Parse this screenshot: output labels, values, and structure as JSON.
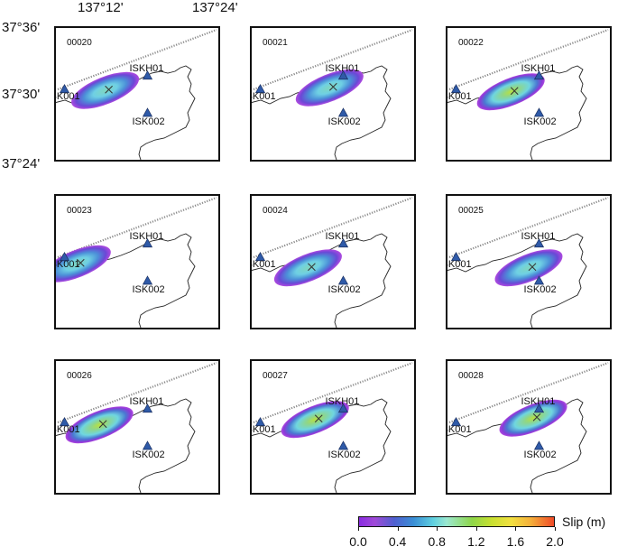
{
  "axes": {
    "x_ticks": [
      "137°12'",
      "137°24'"
    ],
    "y_ticks": [
      "37°36'",
      "37°30'",
      "37°24'"
    ]
  },
  "stations": [
    "ISKH01",
    "ISK001",
    "ISK002"
  ],
  "panels": [
    {
      "id": "00020",
      "slip_center_lon": 137.223,
      "slip_center_lat": 37.505,
      "peak_slip_m": 0.9
    },
    {
      "id": "00021",
      "slip_center_lon": 137.292,
      "slip_center_lat": 37.509,
      "peak_slip_m": 1.0
    },
    {
      "id": "00022",
      "slip_center_lon": 137.257,
      "slip_center_lat": 37.503,
      "peak_slip_m": 1.3
    },
    {
      "id": "00023",
      "slip_center_lon": 137.155,
      "slip_center_lat": 37.497,
      "peak_slip_m": 1.0
    },
    {
      "id": "00024",
      "slip_center_lon": 137.24,
      "slip_center_lat": 37.491,
      "peak_slip_m": 1.1
    },
    {
      "id": "00025",
      "slip_center_lon": 137.3,
      "slip_center_lat": 37.491,
      "peak_slip_m": 1.1
    },
    {
      "id": "00026",
      "slip_center_lon": 137.209,
      "slip_center_lat": 37.503,
      "peak_slip_m": 1.2
    },
    {
      "id": "00027",
      "slip_center_lon": 137.257,
      "slip_center_lat": 37.511,
      "peak_slip_m": 1.3
    },
    {
      "id": "00028",
      "slip_center_lon": 137.311,
      "slip_center_lat": 37.513,
      "peak_slip_m": 1.3
    }
  ],
  "colorbar": {
    "title": "Slip (m)",
    "ticks": [
      "0.0",
      "0.4",
      "0.8",
      "1.2",
      "1.6",
      "2.0"
    ]
  }
}
